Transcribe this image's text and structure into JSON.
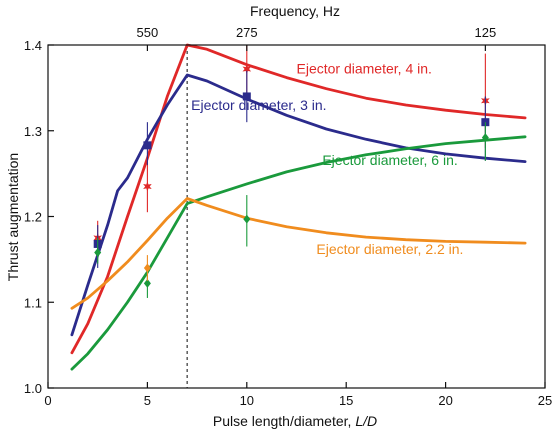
{
  "chart_data": {
    "type": "line",
    "title": "",
    "xlabel": "Pulse length/diameter, L/D",
    "xlabel_parts": [
      "Pulse length/diameter, ",
      "L/D"
    ],
    "ylabel": "Thrust augmentation",
    "top_axis_label": "Frequency, Hz",
    "xlim": [
      0,
      25
    ],
    "ylim": [
      1.0,
      1.4
    ],
    "x_ticks": [
      0,
      5,
      10,
      15,
      20,
      25
    ],
    "x_tick_labels": [
      "0",
      "5",
      "10",
      "15",
      "20",
      "25"
    ],
    "y_ticks": [
      1.0,
      1.1,
      1.2,
      1.3,
      1.4
    ],
    "y_tick_labels": [
      "1.0",
      "1.1",
      "1.2",
      "1.3",
      "1.4"
    ],
    "top_ticks": [
      {
        "x": 5,
        "label": "550"
      },
      {
        "x": 10,
        "label": "275"
      },
      {
        "x": 22,
        "label": "125"
      }
    ],
    "reference_line_x": 7,
    "series": [
      {
        "name": "Ejector diameter, 4 in.",
        "color": "#e02828",
        "marker": "star",
        "x": [
          1.2,
          2,
          3,
          4,
          5,
          6,
          7,
          8,
          10,
          12,
          14,
          16,
          18,
          20,
          22,
          24
        ],
        "y": [
          1.041,
          1.075,
          1.13,
          1.2,
          1.268,
          1.34,
          1.4,
          1.395,
          1.377,
          1.362,
          1.349,
          1.338,
          1.33,
          1.324,
          1.319,
          1.315
        ],
        "points": [
          {
            "x": 2.5,
            "y": 1.175,
            "err_low": 1.155,
            "err_high": 1.195
          },
          {
            "x": 5,
            "y": 1.235,
            "err_low": 1.205,
            "err_high": 1.265
          },
          {
            "x": 10,
            "y": 1.372,
            "err_low": 1.34,
            "err_high": 1.4
          },
          {
            "x": 22,
            "y": 1.335,
            "err_low": 1.28,
            "err_high": 1.39
          }
        ]
      },
      {
        "name": "Ejector diameter, 3 in.",
        "color": "#2b2b8c",
        "marker": "square",
        "x": [
          1.2,
          2,
          3,
          3.5,
          4,
          5,
          6,
          7,
          8,
          10,
          12,
          14,
          16,
          18,
          20,
          22,
          24
        ],
        "y": [
          1.062,
          1.12,
          1.19,
          1.23,
          1.245,
          1.29,
          1.33,
          1.365,
          1.358,
          1.337,
          1.318,
          1.302,
          1.29,
          1.28,
          1.273,
          1.268,
          1.264
        ],
        "points": [
          {
            "x": 2.5,
            "y": 1.168,
            "err_low": 1.14,
            "err_high": 1.19
          },
          {
            "x": 5,
            "y": 1.283,
            "err_low": 1.26,
            "err_high": 1.31
          },
          {
            "x": 10,
            "y": 1.34,
            "err_low": 1.31,
            "err_high": 1.37
          },
          {
            "x": 22,
            "y": 1.31,
            "err_low": 1.265,
            "err_high": 1.34
          }
        ]
      },
      {
        "name": "Ejector diameter, 6 in.",
        "color": "#1a9a3c",
        "marker": "diamond",
        "x": [
          1.2,
          2,
          3,
          4,
          5,
          6,
          7,
          8,
          10,
          12,
          14,
          16,
          18,
          20,
          22,
          24
        ],
        "y": [
          1.022,
          1.04,
          1.068,
          1.1,
          1.135,
          1.175,
          1.215,
          1.223,
          1.238,
          1.252,
          1.263,
          1.272,
          1.279,
          1.285,
          1.289,
          1.293
        ],
        "points": [
          {
            "x": 2.5,
            "y": 1.158,
            "err_low": 1.145,
            "err_high": 1.175
          },
          {
            "x": 5,
            "y": 1.122,
            "err_low": 1.105,
            "err_high": 1.14
          },
          {
            "x": 10,
            "y": 1.197,
            "err_low": 1.165,
            "err_high": 1.225
          },
          {
            "x": 22,
            "y": 1.292,
            "err_low": 1.265,
            "err_high": 1.31
          }
        ]
      },
      {
        "name": "Ejector diameter, 2.2 in.",
        "color": "#f08c1e",
        "marker": "diamond",
        "x": [
          1.2,
          2,
          3,
          4,
          5,
          6,
          7,
          8,
          10,
          12,
          14,
          16,
          18,
          20,
          22,
          24
        ],
        "y": [
          1.093,
          1.105,
          1.125,
          1.147,
          1.172,
          1.198,
          1.221,
          1.213,
          1.198,
          1.188,
          1.181,
          1.176,
          1.173,
          1.171,
          1.17,
          1.169
        ],
        "points": [
          {
            "x": 5,
            "y": 1.14,
            "err_low": 1.125,
            "err_high": 1.155
          }
        ]
      }
    ],
    "series_labels": [
      {
        "series": 0,
        "text": "Ejector diameter, 4 in.",
        "x": 12.5,
        "y": 1.367
      },
      {
        "series": 1,
        "text": "Ejector diameter, 3 in.",
        "x": 7.2,
        "y": 1.324
      },
      {
        "series": 2,
        "text": "Ejector diameter, 6 in.",
        "x": 13.8,
        "y": 1.26
      },
      {
        "series": 3,
        "text": "Ejector diameter, 2.2 in.",
        "x": 13.5,
        "y": 1.156
      }
    ]
  }
}
